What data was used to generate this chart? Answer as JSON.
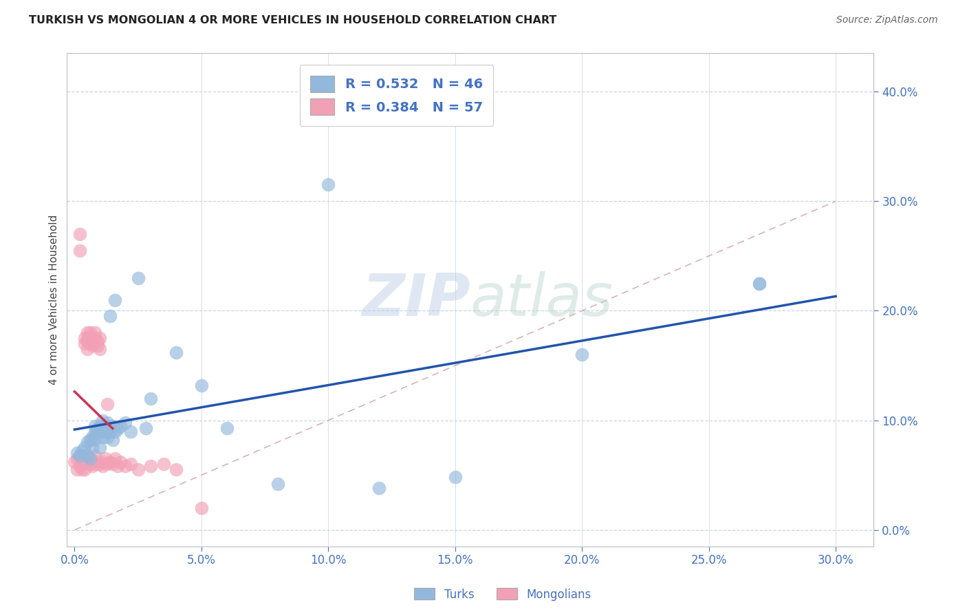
{
  "title": "TURKISH VS MONGOLIAN 4 OR MORE VEHICLES IN HOUSEHOLD CORRELATION CHART",
  "source": "Source: ZipAtlas.com",
  "ylabel": "4 or more Vehicles in Household",
  "watermark_zip": "ZIP",
  "watermark_atlas": "atlas",
  "xlim": [
    -0.003,
    0.315
  ],
  "ylim": [
    -0.015,
    0.435
  ],
  "turks_color": "#92B8DC",
  "mongolians_color": "#F2A0B5",
  "turks_line_color": "#2255AA",
  "mongolians_line_color": "#CC3355",
  "diagonal_color": "#D8AAAA",
  "grid_color": "#BBCCE0",
  "turks_x": [
    0.001,
    0.002,
    0.003,
    0.004,
    0.005,
    0.005,
    0.006,
    0.006,
    0.007,
    0.007,
    0.008,
    0.008,
    0.008,
    0.009,
    0.009,
    0.01,
    0.01,
    0.011,
    0.011,
    0.012,
    0.012,
    0.013,
    0.013,
    0.014,
    0.014,
    0.015,
    0.015,
    0.016,
    0.016,
    0.017,
    0.018,
    0.02,
    0.022,
    0.025,
    0.028,
    0.03,
    0.04,
    0.05,
    0.06,
    0.08,
    0.1,
    0.12,
    0.15,
    0.2,
    0.27,
    0.27
  ],
  "turks_y": [
    0.07,
    0.068,
    0.072,
    0.075,
    0.08,
    0.068,
    0.082,
    0.065,
    0.085,
    0.075,
    0.09,
    0.083,
    0.095,
    0.088,
    0.092,
    0.075,
    0.095,
    0.085,
    0.1,
    0.09,
    0.095,
    0.098,
    0.085,
    0.195,
    0.09,
    0.082,
    0.095,
    0.09,
    0.21,
    0.092,
    0.095,
    0.098,
    0.09,
    0.23,
    0.093,
    0.12,
    0.162,
    0.132,
    0.093,
    0.042,
    0.315,
    0.038,
    0.048,
    0.16,
    0.225,
    0.225
  ],
  "mongolians_x": [
    0.0,
    0.001,
    0.001,
    0.002,
    0.002,
    0.002,
    0.002,
    0.003,
    0.003,
    0.003,
    0.003,
    0.004,
    0.004,
    0.004,
    0.004,
    0.004,
    0.005,
    0.005,
    0.005,
    0.005,
    0.005,
    0.006,
    0.006,
    0.006,
    0.006,
    0.006,
    0.007,
    0.007,
    0.007,
    0.007,
    0.008,
    0.008,
    0.008,
    0.008,
    0.009,
    0.009,
    0.009,
    0.01,
    0.01,
    0.01,
    0.011,
    0.011,
    0.012,
    0.013,
    0.013,
    0.014,
    0.015,
    0.016,
    0.017,
    0.018,
    0.02,
    0.022,
    0.025,
    0.03,
    0.035,
    0.04,
    0.05
  ],
  "mongolians_y": [
    0.062,
    0.065,
    0.055,
    0.27,
    0.255,
    0.068,
    0.058,
    0.065,
    0.068,
    0.06,
    0.055,
    0.175,
    0.17,
    0.068,
    0.06,
    0.055,
    0.175,
    0.18,
    0.172,
    0.165,
    0.062,
    0.18,
    0.175,
    0.17,
    0.065,
    0.06,
    0.175,
    0.168,
    0.172,
    0.058,
    0.18,
    0.175,
    0.068,
    0.06,
    0.172,
    0.168,
    0.062,
    0.175,
    0.165,
    0.06,
    0.062,
    0.058,
    0.065,
    0.06,
    0.115,
    0.062,
    0.06,
    0.065,
    0.058,
    0.062,
    0.058,
    0.06,
    0.055,
    0.058,
    0.06,
    0.055,
    0.02
  ]
}
